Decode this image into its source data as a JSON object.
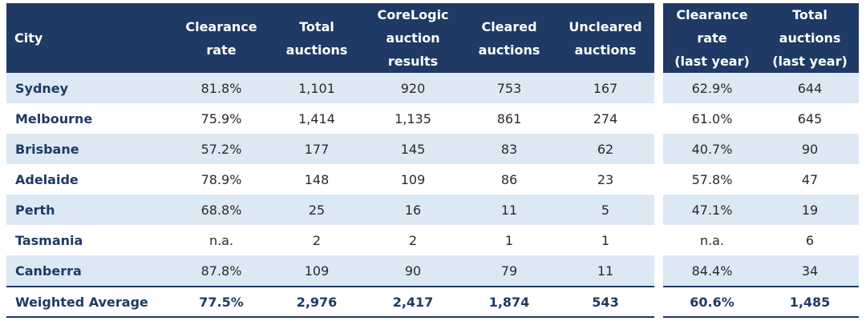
{
  "main_table": {
    "headers": [
      "City",
      "Clearance\nrate",
      "Total\nauctions",
      "CoreLogic\nauction\nresults",
      "Cleared\nauctions",
      "Uncleared\nauctions"
    ],
    "rows": [
      [
        "Sydney",
        "81.8%",
        "1,101",
        "920",
        "753",
        "167"
      ],
      [
        "Melbourne",
        "75.9%",
        "1,414",
        "1,135",
        "861",
        "274"
      ],
      [
        "Brisbane",
        "57.2%",
        "177",
        "145",
        "83",
        "62"
      ],
      [
        "Adelaide",
        "78.9%",
        "148",
        "109",
        "86",
        "23"
      ],
      [
        "Perth",
        "68.8%",
        "25",
        "16",
        "11",
        "5"
      ],
      [
        "Tasmania",
        "n.a.",
        "2",
        "2",
        "1",
        "1"
      ],
      [
        "Canberra",
        "87.8%",
        "109",
        "90",
        "79",
        "11"
      ]
    ],
    "average": [
      "Weighted Average",
      "77.5%",
      "2,976",
      "2,417",
      "1,874",
      "543"
    ]
  },
  "last_year_table": {
    "headers": [
      "Clearance\nrate\n(last year)",
      "Total\nauctions\n(last year)"
    ],
    "rows": [
      [
        "62.9%",
        "644"
      ],
      [
        "61.0%",
        "645"
      ],
      [
        "40.7%",
        "90"
      ],
      [
        "57.8%",
        "47"
      ],
      [
        "47.1%",
        "19"
      ],
      [
        "n.a.",
        "6"
      ],
      [
        "84.4%",
        "34"
      ]
    ],
    "average": [
      "60.6%",
      "1,485"
    ]
  },
  "colors": {
    "header_bg": "#1f3a64",
    "row_alt_bg": "#dde8f5",
    "text": "#2a2a2a"
  }
}
